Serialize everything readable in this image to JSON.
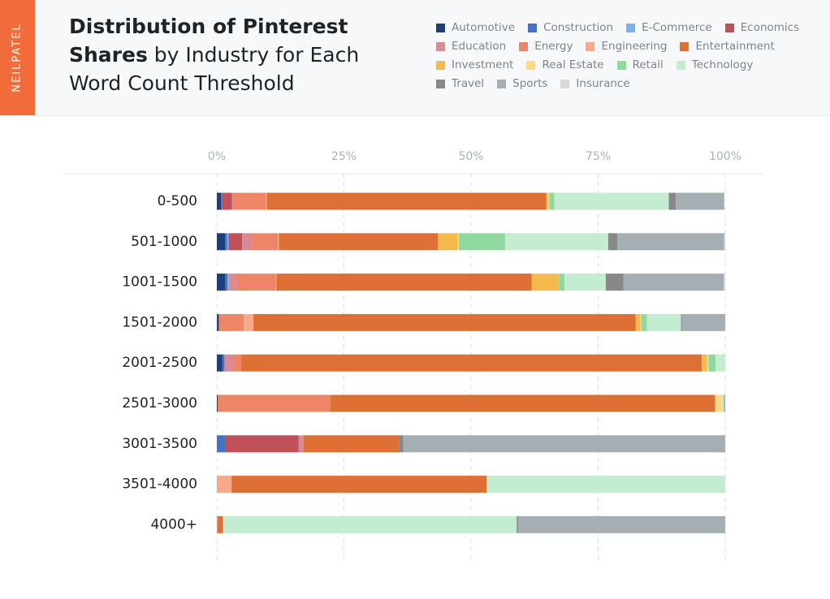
{
  "chart_data": {
    "type": "stacked-bar-horizontal",
    "brand": "NEILPATEL",
    "title": {
      "bold": "Distribution of Pinterest Shares",
      "regular": "by Industry for Each Word Count Threshold"
    },
    "categories": [
      "0-500",
      "501-1000",
      "1001-1500",
      "1501-2000",
      "2001-2500",
      "2501-3000",
      "3001-3500",
      "3501-4000",
      "4000+"
    ],
    "xlim": [
      0,
      100
    ],
    "xticks": [
      {
        "value": 0,
        "label": "0%"
      },
      {
        "value": 25,
        "label": "25%"
      },
      {
        "value": 50,
        "label": "50%"
      },
      {
        "value": 75,
        "label": "75%"
      },
      {
        "value": 100,
        "label": "100%"
      }
    ],
    "grid": true,
    "series": [
      {
        "name": "Automotive",
        "color": "#1f3f7a",
        "values": [
          0.8,
          1.6,
          1.6,
          0.3,
          1.1,
          0.2,
          0,
          0,
          0
        ]
      },
      {
        "name": "Construction",
        "color": "#4472c4",
        "values": [
          0.2,
          0.4,
          0.5,
          0.2,
          0.4,
          0,
          1.6,
          0,
          0
        ]
      },
      {
        "name": "E-Commerce",
        "color": "#7ab0f5",
        "values": [
          0,
          0.3,
          0.2,
          0,
          0,
          0,
          0,
          0,
          0
        ]
      },
      {
        "name": "Economics",
        "color": "#c0505a",
        "values": [
          2.0,
          2.7,
          0,
          0,
          0,
          0,
          14.5,
          0,
          0
        ]
      },
      {
        "name": "Education",
        "color": "#d98b94",
        "values": [
          0.2,
          1.8,
          1.6,
          0,
          1.7,
          0,
          1.0,
          0,
          0
        ]
      },
      {
        "name": "Energy",
        "color": "#ee8566",
        "values": [
          6.4,
          5.2,
          7.6,
          4.8,
          1.6,
          22.1,
          0,
          0,
          0.2
        ]
      },
      {
        "name": "Engineering",
        "color": "#f7a98a",
        "values": [
          0.2,
          0.2,
          0.2,
          1.9,
          0,
          0,
          0,
          2.9,
          0
        ]
      },
      {
        "name": "Entertainment",
        "color": "#de6f35",
        "values": [
          55,
          31.3,
          50.2,
          75.2,
          90.6,
          75.7,
          18.7,
          50.2,
          1.0
        ]
      },
      {
        "name": "Investment",
        "color": "#f5b94c",
        "values": [
          0.4,
          3.8,
          5.4,
          0.9,
          1.0,
          0,
          0,
          0,
          0
        ]
      },
      {
        "name": "Real Estate",
        "color": "#fbd98c",
        "values": [
          0.2,
          0.3,
          0,
          0.2,
          0.3,
          1.4,
          0,
          0,
          0
        ]
      },
      {
        "name": "Retail",
        "color": "#8fd9a0",
        "values": [
          1.0,
          9.1,
          1.1,
          1.1,
          1.4,
          0,
          0,
          0,
          0
        ]
      },
      {
        "name": "Technology",
        "color": "#c4ecd0",
        "values": [
          22.5,
          20.3,
          8.1,
          6.7,
          1.9,
          0.3,
          0,
          46.9,
          57.8
        ]
      },
      {
        "name": "Travel",
        "color": "#888888",
        "values": [
          1.4,
          1.8,
          3.5,
          0.2,
          0,
          0,
          0.9,
          0,
          0.3
        ]
      },
      {
        "name": "Sports",
        "color": "#a5afb3",
        "values": [
          9.5,
          21.0,
          19.7,
          8.5,
          0,
          0.3,
          63.3,
          0,
          40.7
        ]
      },
      {
        "name": "Insurance",
        "color": "#d8d8d8",
        "values": [
          0,
          0.2,
          0.3,
          0,
          0,
          0,
          0,
          0,
          0
        ]
      }
    ]
  }
}
